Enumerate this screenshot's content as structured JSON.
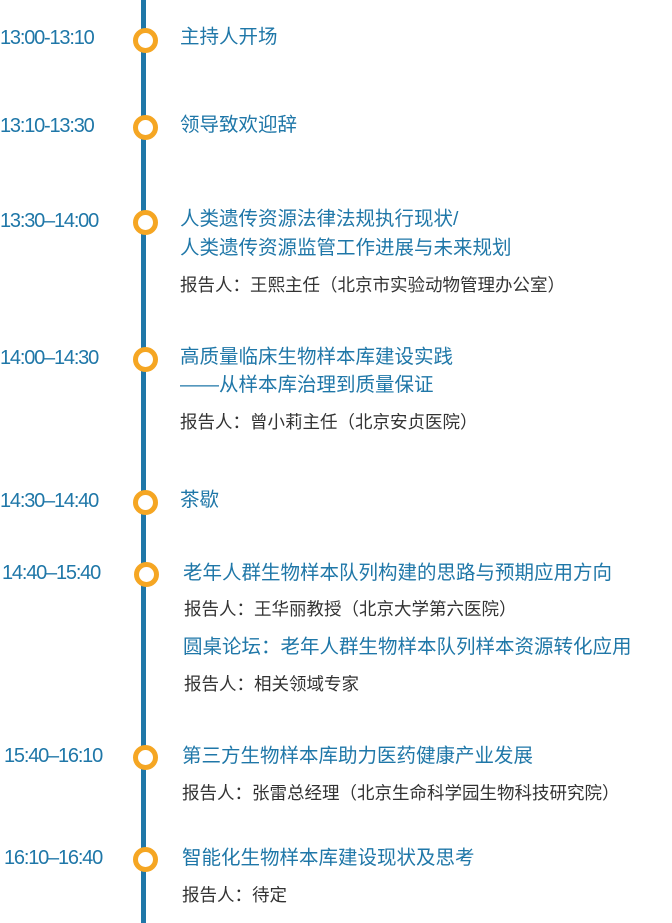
{
  "colors": {
    "line": "#1f77a8",
    "dot": "#f5a623",
    "title": "#1f77a8",
    "reporter": "#333333"
  },
  "items": [
    {
      "time": "13:00-13:10",
      "title": [
        "主持人开场"
      ]
    },
    {
      "time": "13:10-13:30",
      "title": [
        "领导致欢迎辞"
      ]
    },
    {
      "time": "13:30–14:00",
      "title": [
        "人类遗传资源法律法规执行现状/",
        "人类遗传资源监管工作进展与未来规划"
      ],
      "reporter": "报告人：王熙主任（北京市实验动物管理办公室）"
    },
    {
      "time": "14:00–14:30",
      "title": [
        "高质量临床生物样本库建设实践",
        "——从样本库治理到质量保证"
      ],
      "reporter": "报告人：曾小莉主任（北京安贞医院）"
    },
    {
      "time": "14:30–14:40",
      "title": [
        "茶歇"
      ]
    },
    {
      "time": "14:40–15:40",
      "title": [
        "老年人群生物样本队列构建的思路与预期应用方向"
      ],
      "reporter": "报告人：王华丽教授（北京大学第六医院）",
      "title2": "圆桌论坛：老年人群生物样本队列样本资源转化应用",
      "reporter2": "报告人：相关领域专家"
    },
    {
      "time": "15:40–16:10",
      "title": [
        "第三方生物样本库助力医药健康产业发展"
      ],
      "reporter": "报告人：张雷总经理（北京生命科学园生物科技研究院）"
    },
    {
      "time": "16:10–16:40",
      "title": [
        "智能化生物样本库建设现状及思考"
      ],
      "reporter": "报告人：待定"
    }
  ]
}
